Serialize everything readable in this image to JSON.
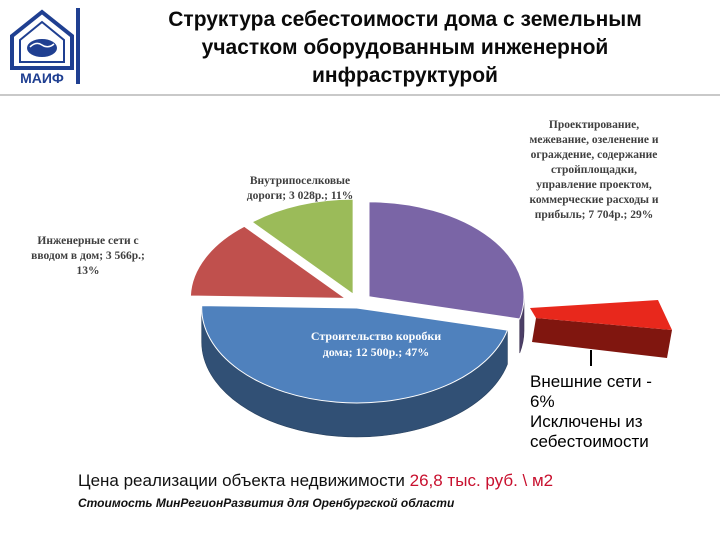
{
  "logo": {
    "text": "МАИФ"
  },
  "header": {
    "title_lines": [
      "Структура себестоимости дома с земельным",
      "участком оборудованным инженерной",
      "инфраструктурой"
    ]
  },
  "chart_data": {
    "type": "pie",
    "title": "",
    "slices": [
      {
        "label_lines": [
          "Проектирование,",
          "межевание, озеленение и",
          "ограждение, содержание",
          "стройплощадки,",
          "управление проектом,",
          "коммерческие расходы и",
          "прибыль; 7 704р.; 29%"
        ],
        "value": 7704,
        "percent": 29,
        "color": "#7a65a6"
      },
      {
        "label_lines": [
          "Строительство коробки",
          "дома; 12 500р.; 47%"
        ],
        "value": 12500,
        "percent": 47,
        "color": "#4f81bd"
      },
      {
        "label_lines": [
          "Инженерные сети с",
          "вводом в дом; 3 566р.;",
          "13%"
        ],
        "value": 3566,
        "percent": 13,
        "color": "#c0504d"
      },
      {
        "label_lines": [
          "Внутрипоселковые",
          "дороги; 3 028р.; 11%"
        ],
        "value": 3028,
        "percent": 11,
        "color": "#9bbb59"
      }
    ],
    "excluded_slice": {
      "percent": 6,
      "color": "#e8281c"
    },
    "legend": "none"
  },
  "external_note": {
    "lines": [
      "Внешние сети -",
      "6%",
      "Исключены из",
      "себестоимости"
    ]
  },
  "price": {
    "prefix": "Цена реализации объекта недвижимости ",
    "value": "26,8 тыс. руб. \\ м2"
  },
  "source": "Стоимость МинРегионРазвития для Оренбургской области"
}
